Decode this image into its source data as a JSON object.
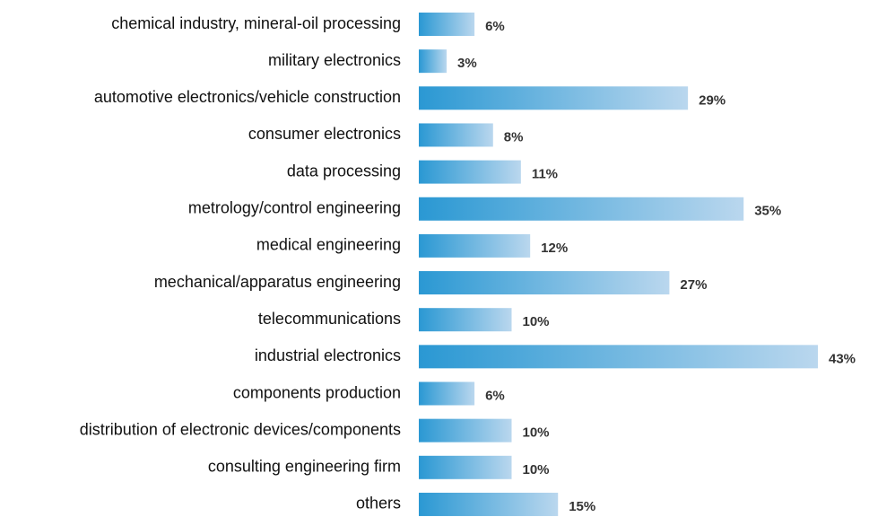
{
  "chart_data": {
    "type": "hbar",
    "categories": [
      "chemical industry, mineral-oil processing",
      "military electronics",
      "automotive electronics/vehicle construction",
      "consumer electronics",
      "data processing",
      "metrology/control engineering",
      "medical engineering",
      "mechanical/apparatus engineering",
      "telecommunications",
      "industrial electronics",
      "components production",
      "distribution of electronic devices/components",
      "consulting engineering firm",
      "others"
    ],
    "values": [
      6,
      3,
      29,
      8,
      11,
      35,
      12,
      27,
      10,
      43,
      6,
      10,
      10,
      15
    ],
    "value_labels": [
      "6%",
      "3%",
      "29%",
      "8%",
      "11%",
      "35%",
      "12%",
      "27%",
      "10%",
      "43%",
      "6%",
      "10%",
      "10%",
      "15%"
    ],
    "gradient": [
      "#2a98d3",
      "#bad7ee"
    ]
  }
}
